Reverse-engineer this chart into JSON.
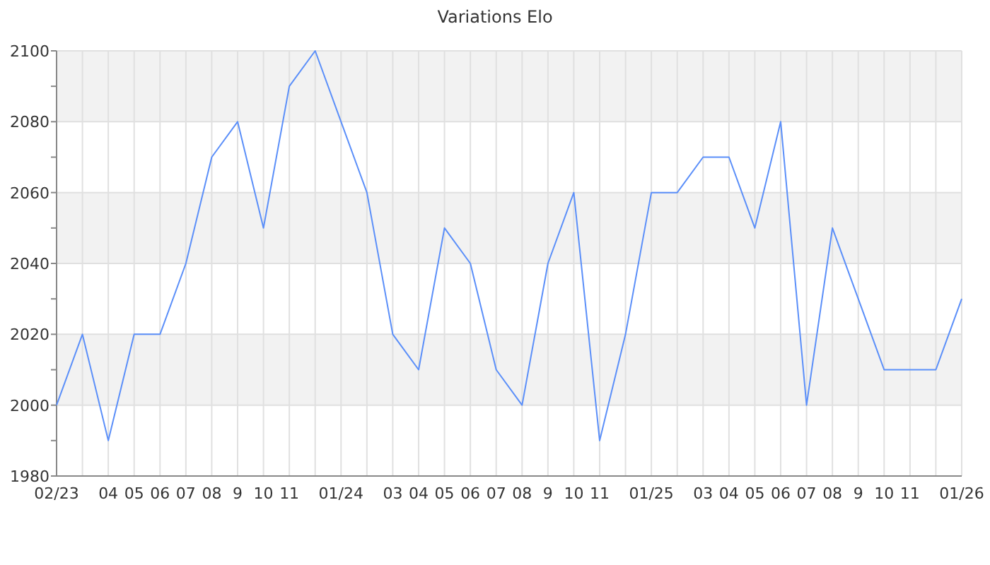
{
  "chart_data": {
    "type": "line",
    "title": "Variations Elo",
    "categories": [
      "02/23",
      null,
      "04",
      "05",
      "06",
      "07",
      "08",
      "9",
      "10",
      "11",
      null,
      "01/24",
      null,
      "03",
      "04",
      "05",
      "06",
      "07",
      "08",
      "9",
      "10",
      "11",
      null,
      "01/25",
      null,
      "03",
      "04",
      "05",
      "06",
      "07",
      "08",
      "9",
      "10",
      "11",
      null,
      "01/26"
    ],
    "series": [
      {
        "color": "#5b8ff9",
        "values": [
          2000,
          2020,
          1990,
          2020,
          2020,
          2040,
          2070,
          2080,
          2050,
          2090,
          2100,
          2080,
          2060,
          2020,
          2010,
          2050,
          2040,
          2010,
          2000,
          2040,
          2060,
          1990,
          2020,
          2060,
          2060,
          2070,
          2070,
          2050,
          2080,
          2000,
          2050,
          2030,
          2010,
          2010,
          2010,
          2030
        ]
      }
    ],
    "ylim": [
      1980,
      2100
    ],
    "yticks": [
      1980,
      {
        "value": 1990,
        "label": null
      },
      2000,
      {
        "value": 2010,
        "label": null
      },
      2020,
      {
        "value": 2030,
        "label": null
      },
      2040,
      {
        "value": 2050,
        "label": null
      },
      2060,
      {
        "value": 2070,
        "label": null
      },
      2080,
      {
        "value": 2090,
        "label": null
      },
      2100
    ],
    "grid": true,
    "marker": "none",
    "line_style": "solid"
  }
}
